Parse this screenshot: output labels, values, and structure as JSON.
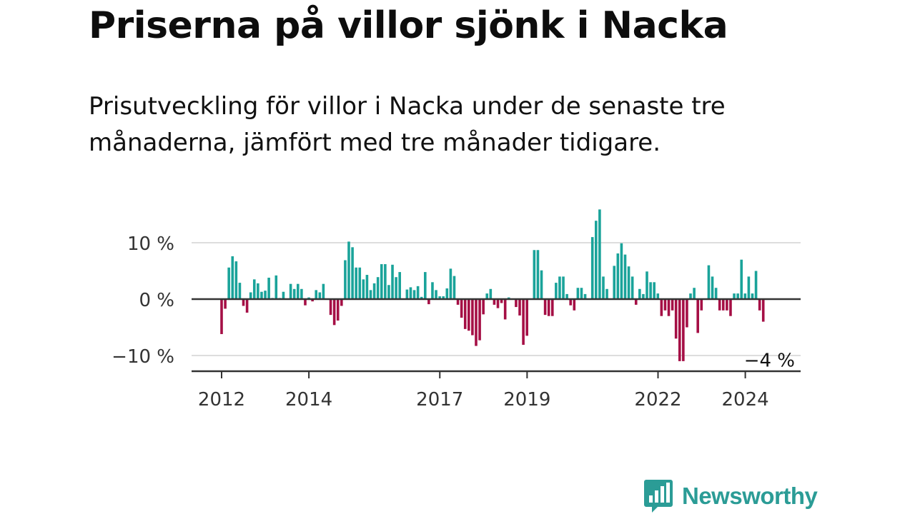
{
  "title": "Priserna på villor sjönk i Nacka",
  "subtitle": "Prisutveckling för villor i Nacka under de senaste tre månaderna, jämfört med tre månader tidigare.",
  "brand": {
    "name": "Newsworthy",
    "color": "#2b9c96",
    "icon": "bar-chart-speech-bubble-icon"
  },
  "colors": {
    "positive": "#1aa39a",
    "negative": "#a50f45",
    "grid": "#dddddd",
    "axis": "#333333"
  },
  "chart_data": {
    "type": "bar",
    "title": "Priserna på villor sjönk i Nacka",
    "xlabel": "",
    "ylabel": "",
    "ylim": [
      -12.5,
      17
    ],
    "x_start": 2012.0,
    "x_step": 0.0833,
    "y_ticks": [
      {
        "value": 10,
        "label": "10 %"
      },
      {
        "value": 0,
        "label": "0 %"
      },
      {
        "value": -10,
        "label": "−10 %"
      }
    ],
    "x_ticks": [
      {
        "value": 2012,
        "label": "2012"
      },
      {
        "value": 2014,
        "label": "2014"
      },
      {
        "value": 2017,
        "label": "2017"
      },
      {
        "value": 2019,
        "label": "2019"
      },
      {
        "value": 2022,
        "label": "2022"
      },
      {
        "value": 2024,
        "label": "2024"
      }
    ],
    "values": [
      -6.2,
      -1.7,
      5.6,
      7.6,
      6.7,
      2.9,
      -1.2,
      -2.4,
      1.2,
      3.5,
      2.8,
      1.3,
      1.5,
      3.8,
      0.2,
      4.2,
      0.2,
      1.3,
      0.1,
      2.7,
      1.8,
      2.7,
      1.8,
      -1.1,
      0.3,
      -0.4,
      1.6,
      1.2,
      2.7,
      0.1,
      -2.8,
      -4.6,
      -3.8,
      -1.2,
      6.9,
      10.2,
      9.2,
      5.6,
      5.6,
      3.5,
      4.3,
      1.6,
      2.8,
      3.9,
      6.2,
      6.2,
      2.5,
      6.1,
      3.9,
      4.8,
      0.1,
      1.7,
      2.1,
      1.6,
      2.3,
      0.4,
      4.8,
      -0.9,
      3.0,
      1.6,
      0.5,
      0.5,
      1.9,
      5.4,
      4.1,
      -1.0,
      -3.3,
      -5.3,
      -5.6,
      -6.4,
      -8.3,
      -7.3,
      -2.7,
      1.0,
      1.8,
      -1.0,
      -1.6,
      -0.7,
      -3.6,
      0.3,
      0.1,
      -1.4,
      -2.9,
      -8.1,
      -6.5,
      0.1,
      8.7,
      8.7,
      5.1,
      -2.8,
      -3.0,
      -3.0,
      2.9,
      4.0,
      4.0,
      0.9,
      -1.1,
      -2.0,
      2.0,
      2.0,
      0.9,
      0.1,
      11.0,
      13.9,
      15.9,
      4.0,
      1.8,
      0.1,
      5.9,
      8.1,
      9.9,
      7.9,
      5.8,
      4.0,
      -1.0,
      1.8,
      0.9,
      4.9,
      3.0,
      3.0,
      1.0,
      -3.0,
      -2.0,
      -3.0,
      -2.0,
      -7.0,
      -11.0,
      -11.0,
      -5.0,
      1.0,
      2.0,
      -6.0,
      -2.0,
      0.1,
      6.0,
      4.0,
      2.0,
      -2.0,
      -2.0,
      -2.0,
      -3.0,
      1.0,
      1.0,
      7.0,
      1.0,
      4.0,
      1.0,
      5.0,
      -2.0,
      -4.0
    ],
    "annotation": {
      "text": "−4 %",
      "value": -4
    }
  }
}
